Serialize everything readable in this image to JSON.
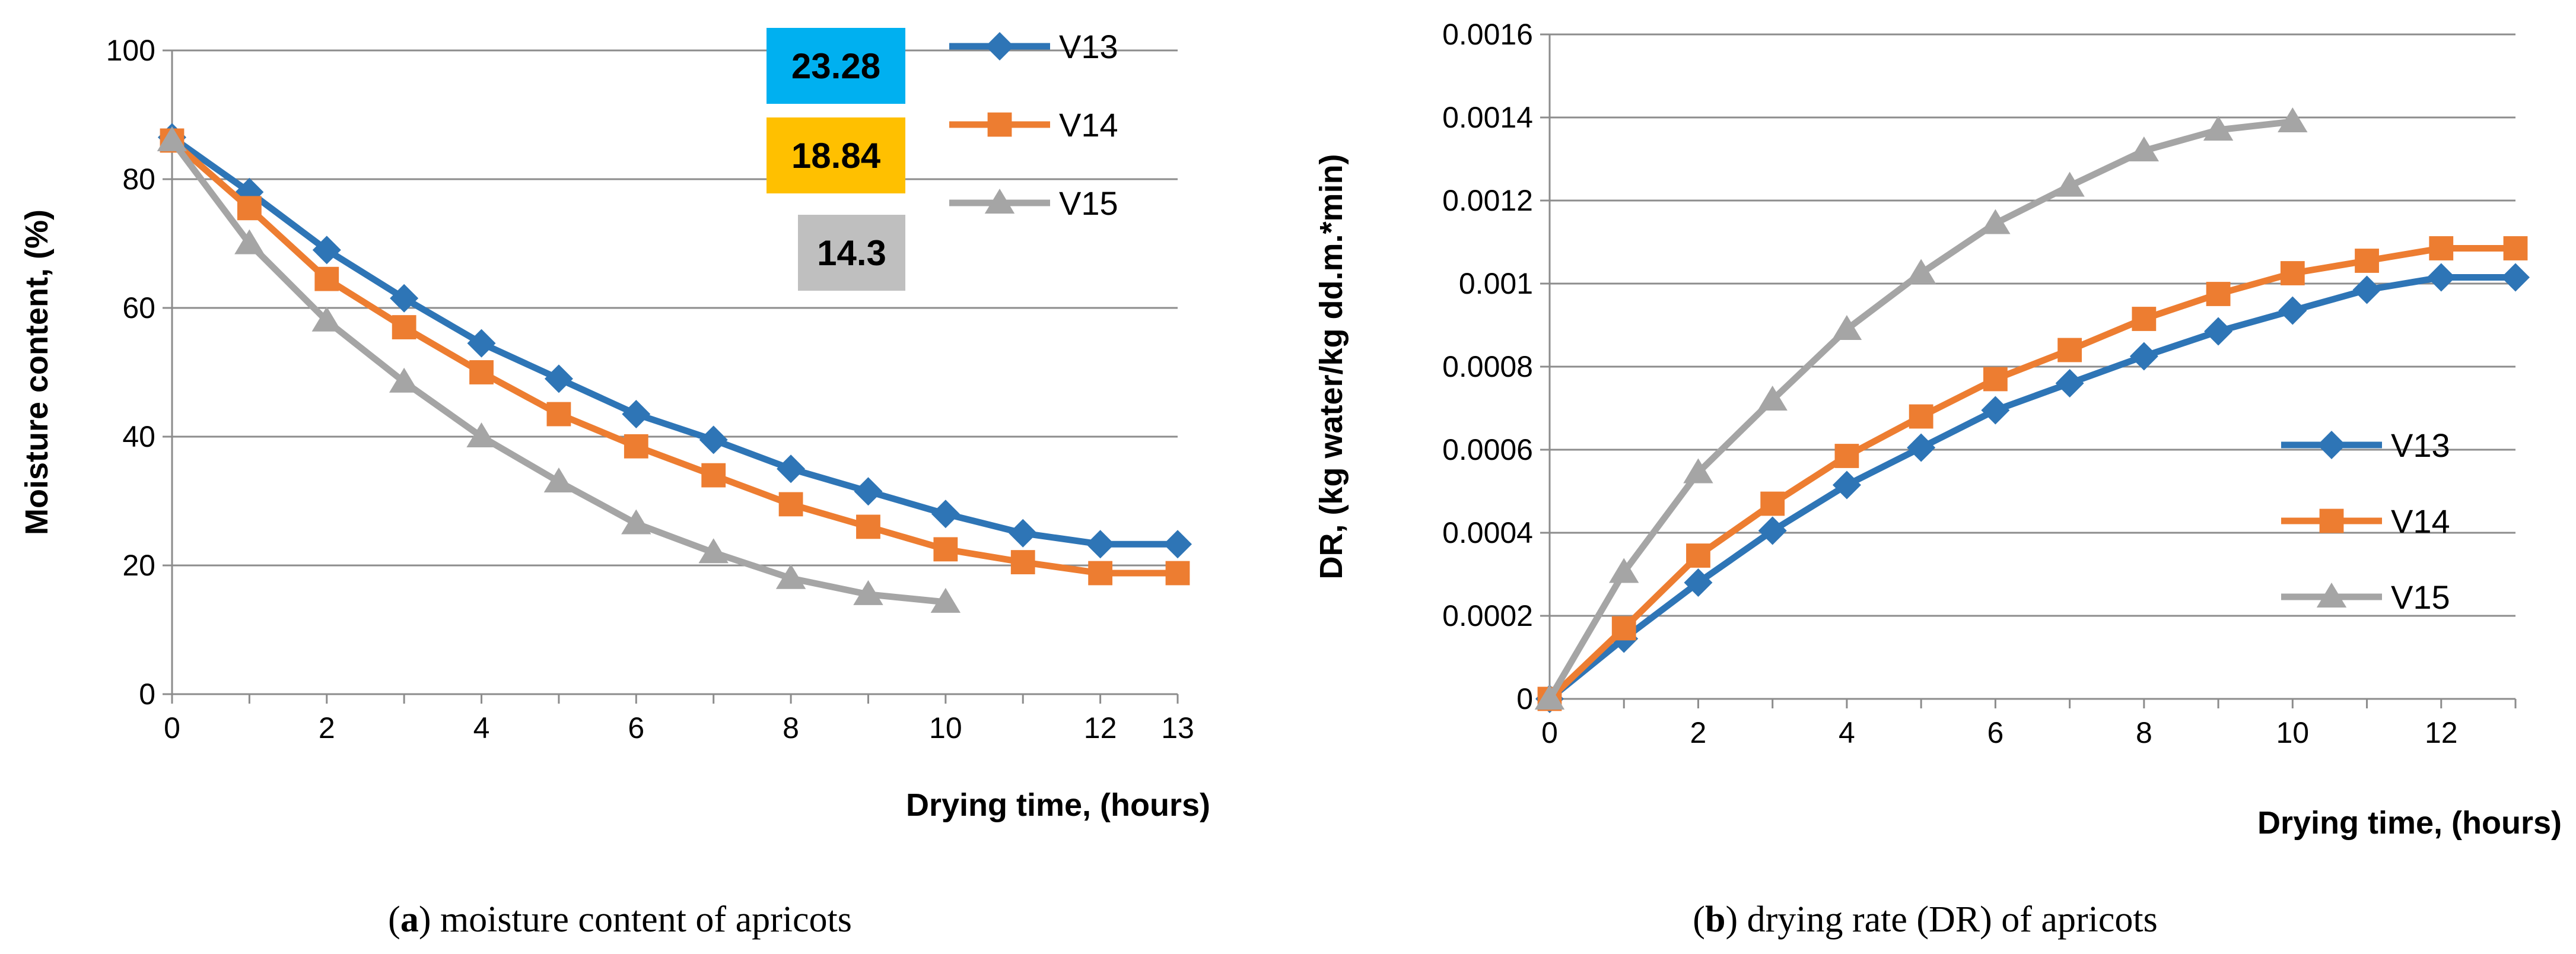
{
  "chart_data": [
    {
      "type": "line",
      "id": "a",
      "xlabel": "Drying time, (hours)",
      "ylabel": "Moisture content, (%)",
      "xlim": [
        0,
        13
      ],
      "ylim": [
        0,
        100
      ],
      "xticks": [
        0,
        2,
        4,
        6,
        8,
        10,
        12,
        13
      ],
      "yticks": [
        0,
        20,
        40,
        60,
        80,
        100
      ],
      "grid": true,
      "legend": "top-right",
      "caption_letter": "a",
      "caption_text": ") moisture content of apricots",
      "caption_open": "(",
      "series": [
        {
          "name": "V13",
          "color": "#2E75B6",
          "marker": "diamond",
          "x": [
            0,
            1,
            2,
            3,
            4,
            5,
            6,
            7,
            8,
            9,
            10,
            11,
            12,
            13
          ],
          "y": [
            86.5,
            78,
            69,
            61.5,
            54.5,
            49,
            43.5,
            39.5,
            35,
            31.5,
            28,
            25,
            23.3,
            23.3
          ]
        },
        {
          "name": "V14",
          "color": "#ED7D31",
          "marker": "square",
          "x": [
            0,
            1,
            2,
            3,
            4,
            5,
            6,
            7,
            8,
            9,
            10,
            11,
            12,
            13
          ],
          "y": [
            86,
            75.5,
            64.5,
            57,
            50,
            43.5,
            38.5,
            34,
            29.5,
            26,
            22.5,
            20.5,
            18.8,
            18.8
          ]
        },
        {
          "name": "V15",
          "color": "#A5A5A5",
          "marker": "triangle",
          "x": [
            0,
            1,
            2,
            3,
            4,
            5,
            6,
            7,
            8,
            9,
            10
          ],
          "y": [
            86,
            70,
            58,
            48.5,
            40,
            33,
            26.5,
            22,
            18,
            15.5,
            14.3
          ]
        }
      ],
      "annotations": [
        {
          "label": "23.28",
          "color": "#00B0F0"
        },
        {
          "label": "18.84",
          "color": "#FFC000"
        },
        {
          "label": "14.3",
          "color": "#BFBFBF"
        }
      ]
    },
    {
      "type": "line",
      "id": "b",
      "xlabel": "Drying time, (hours)",
      "ylabel": "DR, (kg water/kg dd.m.*min)",
      "xlim": [
        0,
        13
      ],
      "ylim": [
        0,
        0.0016
      ],
      "xticks": [
        0,
        2,
        4,
        6,
        8,
        10,
        12
      ],
      "ytick_labels": [
        "0",
        "0.0002",
        "0.0004",
        "0.0006",
        "0.0008",
        "0.001",
        "0.0012",
        "0.0014",
        "0.0016"
      ],
      "yticks": [
        0,
        0.0002,
        0.0004,
        0.0006,
        0.0008,
        0.001,
        0.0012,
        0.0014,
        0.0016
      ],
      "grid": true,
      "legend": "right",
      "caption_letter": "b",
      "caption_text": ") drying rate (DR) of apricots",
      "caption_open": "(",
      "series": [
        {
          "name": "V13",
          "color": "#2E75B6",
          "marker": "diamond",
          "x": [
            0,
            1,
            2,
            3,
            4,
            5,
            6,
            7,
            8,
            9,
            10,
            11,
            12,
            13
          ],
          "y": [
            0,
            0.000145,
            0.00028,
            0.000405,
            0.000515,
            0.000605,
            0.000695,
            0.00076,
            0.000825,
            0.000885,
            0.000935,
            0.000985,
            0.001015,
            0.001015
          ]
        },
        {
          "name": "V14",
          "color": "#ED7D31",
          "marker": "square",
          "x": [
            0,
            1,
            2,
            3,
            4,
            5,
            6,
            7,
            8,
            9,
            10,
            11,
            12,
            13
          ],
          "y": [
            0,
            0.00017,
            0.000345,
            0.00047,
            0.000585,
            0.00068,
            0.00077,
            0.00084,
            0.000915,
            0.000975,
            0.001025,
            0.001055,
            0.001085,
            0.001085
          ]
        },
        {
          "name": "V15",
          "color": "#A5A5A5",
          "marker": "triangle",
          "x": [
            0,
            1,
            2,
            3,
            4,
            5,
            6,
            7,
            8,
            9,
            10
          ],
          "y": [
            0,
            0.000305,
            0.000545,
            0.00072,
            0.00089,
            0.001025,
            0.001145,
            0.001235,
            0.00132,
            0.00137,
            0.00139
          ]
        }
      ]
    }
  ]
}
